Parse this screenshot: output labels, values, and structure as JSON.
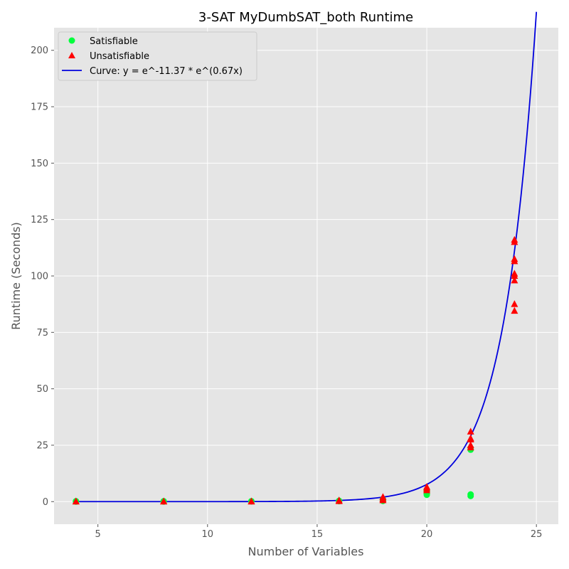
{
  "chart_data": {
    "type": "scatter",
    "title": "3-SAT MyDumbSAT_both Runtime",
    "xlabel": "Number of Variables",
    "ylabel": "Runtime (Seconds)",
    "xlim": [
      3,
      26
    ],
    "ylim": [
      -10,
      210
    ],
    "x_ticks": [
      5,
      10,
      15,
      20,
      25
    ],
    "y_ticks": [
      0,
      25,
      50,
      75,
      100,
      125,
      150,
      175,
      200
    ],
    "grid": true,
    "legend_position": "top-left",
    "series": [
      {
        "name": "Satisfiable",
        "kind": "scatter",
        "marker": "circle",
        "color": "#00ff3c",
        "points": [
          [
            4,
            0.1
          ],
          [
            4,
            0.2
          ],
          [
            4,
            0.0
          ],
          [
            8,
            0.1
          ],
          [
            8,
            0.2
          ],
          [
            8,
            0.0
          ],
          [
            12,
            0.1
          ],
          [
            12,
            0.2
          ],
          [
            16,
            0.2
          ],
          [
            16,
            0.4
          ],
          [
            18,
            0.3
          ],
          [
            18,
            0.6
          ],
          [
            18,
            1.0
          ],
          [
            20,
            3.0
          ],
          [
            20,
            3.5
          ],
          [
            20,
            4.5
          ],
          [
            20,
            5.2
          ],
          [
            22,
            2.5
          ],
          [
            22,
            3.2
          ],
          [
            22,
            23.0
          ],
          [
            22,
            23.8
          ]
        ]
      },
      {
        "name": "Unsatisfiable",
        "kind": "scatter",
        "marker": "triangle",
        "color": "#ff0000",
        "points": [
          [
            4,
            0.0
          ],
          [
            4,
            0.1
          ],
          [
            8,
            0.0
          ],
          [
            8,
            0.1
          ],
          [
            12,
            0.0
          ],
          [
            12,
            0.1
          ],
          [
            16,
            0.2
          ],
          [
            16,
            0.5
          ],
          [
            18,
            0.6
          ],
          [
            18,
            1.2
          ],
          [
            18,
            2.0
          ],
          [
            20,
            5.0
          ],
          [
            20,
            5.8
          ],
          [
            20,
            6.5
          ],
          [
            22,
            24.0
          ],
          [
            22,
            25.0
          ],
          [
            22,
            27.5
          ],
          [
            22,
            28.0
          ],
          [
            22,
            31.0
          ],
          [
            24,
            84.5
          ],
          [
            24,
            87.5
          ],
          [
            24,
            98.0
          ],
          [
            24,
            100.0
          ],
          [
            24,
            101.0
          ],
          [
            24,
            106.5
          ],
          [
            24,
            107.5
          ],
          [
            24,
            115.0
          ],
          [
            24,
            116.0
          ]
        ]
      },
      {
        "name": "Curve: y = e^-11.37 * e^(0.67x)",
        "kind": "line",
        "color": "#0000dd",
        "a": -11.37,
        "b": 0.67,
        "x_range": [
          4,
          25
        ]
      }
    ]
  }
}
